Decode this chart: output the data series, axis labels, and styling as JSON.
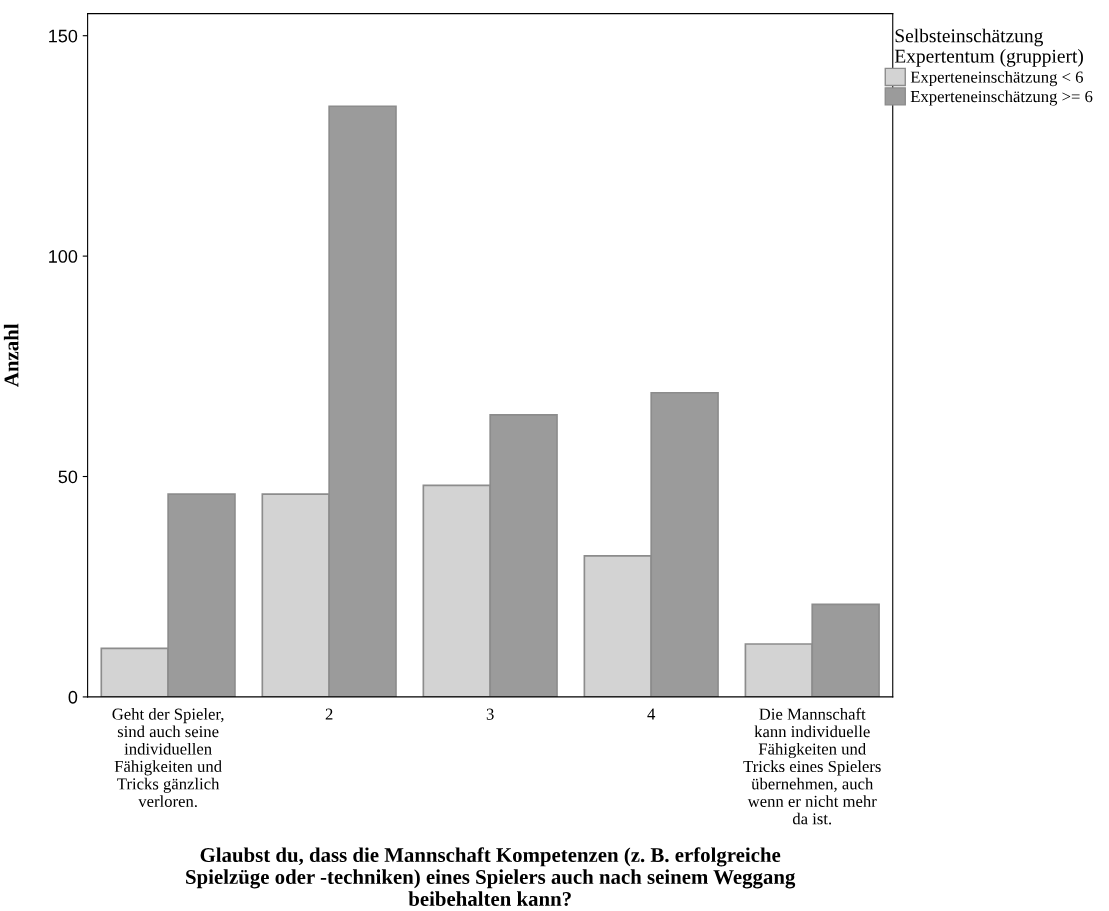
{
  "chart_data": {
    "type": "bar",
    "categories": [
      "Geht der Spieler,\nsind auch seine\nindividuellen\nFähigkeiten und\nTricks gänzlich\nverloren.",
      "2",
      "3",
      "4",
      "Die Mannschaft\nkann individuelle\nFähigkeiten und\nTricks eines Spielers\nübernehmen, auch\nwenn er nicht mehr\nda ist."
    ],
    "series": [
      {
        "name": "Experteneinschätzung < 6",
        "color": "#d3d3d3",
        "values": [
          11,
          46,
          48,
          32,
          12
        ]
      },
      {
        "name": "Experteneinschätzung >= 6",
        "color": "#9b9b9b",
        "values": [
          46,
          134,
          64,
          69,
          21
        ]
      }
    ],
    "xlabel": "Glaubst du, dass die Mannschaft Kompetenzen (z. B. erfolgreiche\nSpielzüge oder -techniken) eines Spielers auch nach seinem Weggang\nbeibehalten kann?",
    "ylabel": "Anzahl",
    "legend_title": "Selbsteinschätzung\nExpertentum (gruppiert)",
    "legend": "top right",
    "ylim": [
      0,
      155
    ],
    "yticks": [
      0,
      50,
      100,
      150
    ],
    "grid": false
  }
}
